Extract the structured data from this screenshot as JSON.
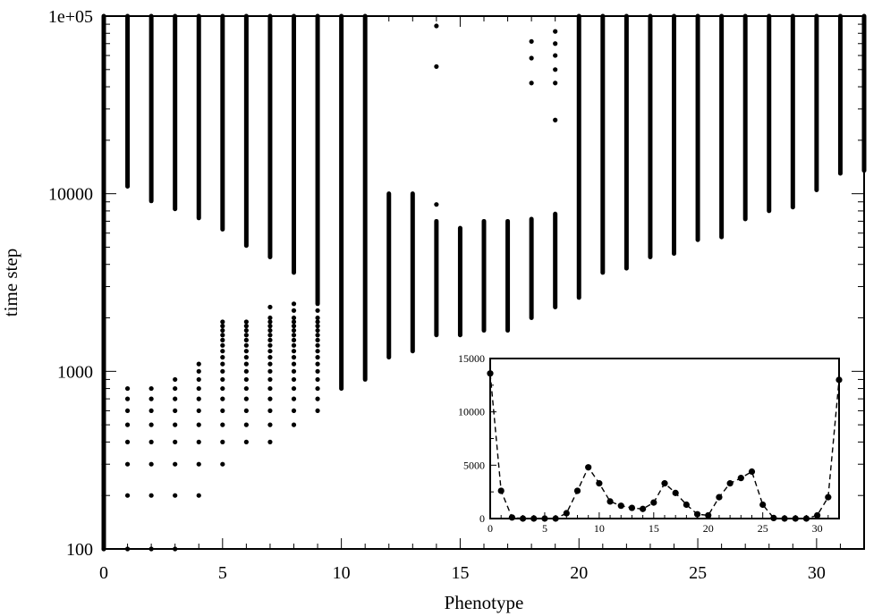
{
  "chart_data": [
    {
      "type": "scatter",
      "title": "",
      "xlabel": "Phenotype",
      "ylabel": "time step",
      "xlim": [
        0,
        32
      ],
      "ylim": [
        100,
        100000
      ],
      "yscale": "log",
      "x_ticks": [
        "0",
        "5",
        "10",
        "15",
        "20",
        "25",
        "30"
      ],
      "y_ticks": [
        "100",
        "1000",
        "10000",
        "1e+05"
      ],
      "grid": false,
      "legend": "none",
      "marker_color": "#000000",
      "note": "Each column is a dense vertical band of points from its lower edge up to 1e+05, plus sparse points below.",
      "columns": [
        {
          "phenotype": 0,
          "band_from": 100,
          "band_to": 100000
        },
        {
          "phenotype": 1,
          "band_from": 11000,
          "band_to": 100000
        },
        {
          "phenotype": 2,
          "band_from": 9100,
          "band_to": 100000
        },
        {
          "phenotype": 3,
          "band_from": 8200,
          "band_to": 100000
        },
        {
          "phenotype": 4,
          "band_from": 7300,
          "band_to": 100000
        },
        {
          "phenotype": 5,
          "band_from": 6300,
          "band_to": 100000
        },
        {
          "phenotype": 6,
          "band_from": 5100,
          "band_to": 100000
        },
        {
          "phenotype": 7,
          "band_from": 4400,
          "band_to": 100000
        },
        {
          "phenotype": 8,
          "band_from": 3600,
          "band_to": 100000
        },
        {
          "phenotype": 9,
          "band_from": 2400,
          "band_to": 100000
        },
        {
          "phenotype": 10,
          "band_from": 800,
          "band_to": 100000
        },
        {
          "phenotype": 11,
          "band_from": 900,
          "band_to": 100000
        },
        {
          "phenotype": 12,
          "band_from": 1200,
          "band_to": 10000
        },
        {
          "phenotype": 13,
          "band_from": 1300,
          "band_to": 10000
        },
        {
          "phenotype": 14,
          "band_from": 1600,
          "band_to": 7000
        },
        {
          "phenotype": 15,
          "band_from": 1600,
          "band_to": 6400
        },
        {
          "phenotype": 16,
          "band_from": 1700,
          "band_to": 7000
        },
        {
          "phenotype": 17,
          "band_from": 1700,
          "band_to": 7000
        },
        {
          "phenotype": 18,
          "band_from": 2000,
          "band_to": 7200
        },
        {
          "phenotype": 19,
          "band_from": 2300,
          "band_to": 7700
        },
        {
          "phenotype": 20,
          "band_from": 2600,
          "band_to": 100000
        },
        {
          "phenotype": 21,
          "band_from": 3600,
          "band_to": 100000
        },
        {
          "phenotype": 22,
          "band_from": 3800,
          "band_to": 100000
        },
        {
          "phenotype": 23,
          "band_from": 4400,
          "band_to": 100000
        },
        {
          "phenotype": 24,
          "band_from": 4600,
          "band_to": 100000
        },
        {
          "phenotype": 25,
          "band_from": 5500,
          "band_to": 100000
        },
        {
          "phenotype": 26,
          "band_from": 5700,
          "band_to": 100000
        },
        {
          "phenotype": 27,
          "band_from": 7200,
          "band_to": 100000
        },
        {
          "phenotype": 28,
          "band_from": 8000,
          "band_to": 100000
        },
        {
          "phenotype": 29,
          "band_from": 8400,
          "band_to": 100000
        },
        {
          "phenotype": 30,
          "band_from": 10500,
          "band_to": 100000
        },
        {
          "phenotype": 31,
          "band_from": 13000,
          "band_to": 100000
        },
        {
          "phenotype": 32,
          "band_from": 13500,
          "band_to": 100000
        }
      ],
      "sparse_points": [
        [
          0,
          100
        ],
        [
          0,
          200
        ],
        [
          0,
          300
        ],
        [
          0,
          400
        ],
        [
          0,
          500
        ],
        [
          1,
          100
        ],
        [
          1,
          200
        ],
        [
          1,
          300
        ],
        [
          1,
          400
        ],
        [
          1,
          500
        ],
        [
          1,
          600
        ],
        [
          1,
          700
        ],
        [
          1,
          800
        ],
        [
          2,
          100
        ],
        [
          2,
          200
        ],
        [
          2,
          300
        ],
        [
          2,
          400
        ],
        [
          2,
          500
        ],
        [
          2,
          600
        ],
        [
          2,
          700
        ],
        [
          2,
          800
        ],
        [
          3,
          100
        ],
        [
          3,
          200
        ],
        [
          3,
          300
        ],
        [
          3,
          400
        ],
        [
          3,
          500
        ],
        [
          3,
          600
        ],
        [
          3,
          700
        ],
        [
          3,
          800
        ],
        [
          3,
          900
        ],
        [
          4,
          200
        ],
        [
          4,
          300
        ],
        [
          4,
          400
        ],
        [
          4,
          500
        ],
        [
          4,
          600
        ],
        [
          4,
          700
        ],
        [
          4,
          800
        ],
        [
          4,
          900
        ],
        [
          4,
          1000
        ],
        [
          4,
          1100
        ],
        [
          5,
          300
        ],
        [
          5,
          400
        ],
        [
          5,
          500
        ],
        [
          5,
          600
        ],
        [
          5,
          700
        ],
        [
          5,
          800
        ],
        [
          5,
          900
        ],
        [
          5,
          1000
        ],
        [
          5,
          1100
        ],
        [
          5,
          1200
        ],
        [
          5,
          1300
        ],
        [
          5,
          1400
        ],
        [
          5,
          1500
        ],
        [
          5,
          1600
        ],
        [
          5,
          1700
        ],
        [
          5,
          1800
        ],
        [
          5,
          1900
        ],
        [
          6,
          400
        ],
        [
          6,
          500
        ],
        [
          6,
          600
        ],
        [
          6,
          700
        ],
        [
          6,
          800
        ],
        [
          6,
          900
        ],
        [
          6,
          1000
        ],
        [
          6,
          1100
        ],
        [
          6,
          1200
        ],
        [
          6,
          1300
        ],
        [
          6,
          1400
        ],
        [
          6,
          1500
        ],
        [
          6,
          1600
        ],
        [
          6,
          1700
        ],
        [
          6,
          1800
        ],
        [
          6,
          1900
        ],
        [
          7,
          400
        ],
        [
          7,
          500
        ],
        [
          7,
          600
        ],
        [
          7,
          700
        ],
        [
          7,
          800
        ],
        [
          7,
          900
        ],
        [
          7,
          1000
        ],
        [
          7,
          1100
        ],
        [
          7,
          1200
        ],
        [
          7,
          1300
        ],
        [
          7,
          1400
        ],
        [
          7,
          1500
        ],
        [
          7,
          1600
        ],
        [
          7,
          1700
        ],
        [
          7,
          1800
        ],
        [
          7,
          1900
        ],
        [
          7,
          2000
        ],
        [
          7,
          2300
        ],
        [
          8,
          500
        ],
        [
          8,
          600
        ],
        [
          8,
          700
        ],
        [
          8,
          800
        ],
        [
          8,
          900
        ],
        [
          8,
          1000
        ],
        [
          8,
          1100
        ],
        [
          8,
          1200
        ],
        [
          8,
          1300
        ],
        [
          8,
          1400
        ],
        [
          8,
          1500
        ],
        [
          8,
          1600
        ],
        [
          8,
          1700
        ],
        [
          8,
          1800
        ],
        [
          8,
          1900
        ],
        [
          8,
          2000
        ],
        [
          8,
          2200
        ],
        [
          8,
          2400
        ],
        [
          9,
          600
        ],
        [
          9,
          700
        ],
        [
          9,
          800
        ],
        [
          9,
          900
        ],
        [
          9,
          1000
        ],
        [
          9,
          1100
        ],
        [
          9,
          1200
        ],
        [
          9,
          1300
        ],
        [
          9,
          1400
        ],
        [
          9,
          1500
        ],
        [
          9,
          1600
        ],
        [
          9,
          1700
        ],
        [
          9,
          1800
        ],
        [
          9,
          1900
        ],
        [
          9,
          2000
        ],
        [
          9,
          2200
        ],
        [
          14,
          8700
        ],
        [
          14,
          52000
        ],
        [
          14,
          88000
        ],
        [
          18,
          42000
        ],
        [
          18,
          58000
        ],
        [
          18,
          72000
        ],
        [
          19,
          26000
        ],
        [
          19,
          42000
        ],
        [
          19,
          50000
        ],
        [
          19,
          60000
        ],
        [
          19,
          70000
        ],
        [
          19,
          82000
        ]
      ]
    },
    {
      "type": "line",
      "title": "",
      "xlabel": "",
      "ylabel": "",
      "xlim": [
        0,
        32
      ],
      "ylim": [
        0,
        15000
      ],
      "x_ticks": [
        "0",
        "5",
        "10",
        "15",
        "20",
        "25",
        "30"
      ],
      "y_ticks": [
        "0",
        "5000",
        "10000",
        "15000"
      ],
      "line_style": "dashed",
      "marker": "filled-circle",
      "grid": false,
      "legend": "none",
      "x": [
        0,
        1,
        2,
        3,
        4,
        5,
        6,
        7,
        8,
        9,
        10,
        11,
        12,
        13,
        14,
        15,
        16,
        17,
        18,
        19,
        20,
        21,
        22,
        23,
        24,
        25,
        26,
        27,
        28,
        29,
        30,
        31,
        32
      ],
      "y": [
        13600,
        2600,
        100,
        0,
        0,
        0,
        0,
        500,
        2600,
        4800,
        3300,
        1600,
        1200,
        1000,
        900,
        1500,
        3300,
        2400,
        1300,
        400,
        300,
        2000,
        3300,
        3800,
        4400,
        1300,
        50,
        0,
        0,
        0,
        300,
        2000,
        13000
      ]
    }
  ]
}
